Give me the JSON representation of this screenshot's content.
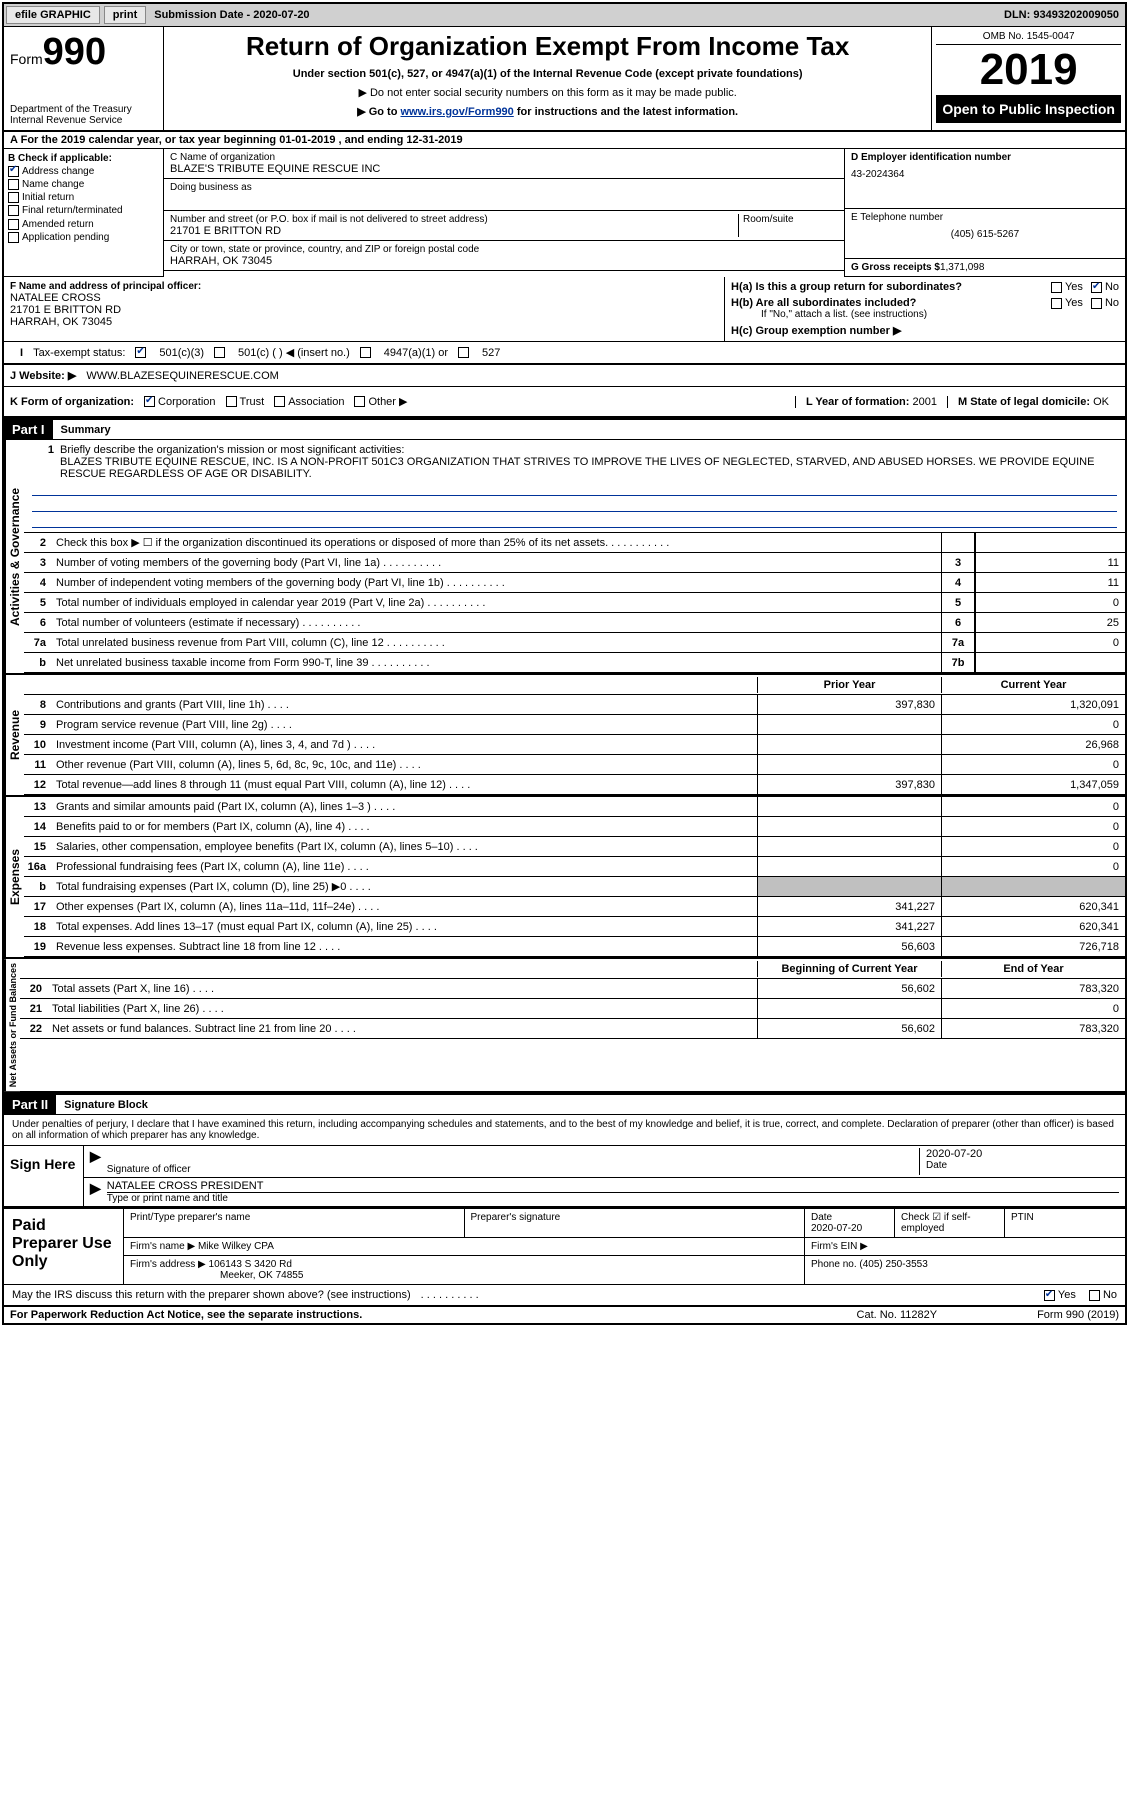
{
  "topbar": {
    "efile": "efile GRAPHIC",
    "print": "print",
    "sub_label": "Submission Date - ",
    "sub_date": "2020-07-20",
    "dln_label": "DLN: ",
    "dln": "93493202009050"
  },
  "header": {
    "form_word": "Form",
    "form_num": "990",
    "dept1": "Department of the Treasury",
    "dept2": "Internal Revenue Service",
    "title": "Return of Organization Exempt From Income Tax",
    "sub1": "Under section 501(c), 527, or 4947(a)(1) of the Internal Revenue Code (except private foundations)",
    "sub2": "▶ Do not enter social security numbers on this form as it may be made public.",
    "sub3_pre": "▶ Go to ",
    "sub3_link": "www.irs.gov/Form990",
    "sub3_post": " for instructions and the latest information.",
    "omb": "OMB No. 1545-0047",
    "year": "2019",
    "open": "Open to Public Inspection"
  },
  "section_a": "For the 2019 calendar year, or tax year beginning 01-01-2019   , and ending 12-31-2019",
  "box_b": {
    "title": "B Check if applicable:",
    "items": [
      "Address change",
      "Name change",
      "Initial return",
      "Final return/terminated",
      "Amended return",
      "Application pending"
    ],
    "checked": [
      true,
      false,
      false,
      false,
      false,
      false
    ]
  },
  "box_c": {
    "name_label": "C Name of organization",
    "name": "BLAZE'S TRIBUTE EQUINE RESCUE INC",
    "dba_label": "Doing business as",
    "dba": "",
    "addr_label": "Number and street (or P.O. box if mail is not delivered to street address)",
    "room_label": "Room/suite",
    "addr": "21701 E BRITTON RD",
    "city_label": "City or town, state or province, country, and ZIP or foreign postal code",
    "city": "HARRAH, OK  73045"
  },
  "box_d": {
    "ein_label": "D Employer identification number",
    "ein": "43-2024364",
    "tel_label": "E Telephone number",
    "tel": "(405) 615-5267",
    "gross_label": "G Gross receipts $",
    "gross": "1,371,098"
  },
  "box_f": {
    "label": "F  Name and address of principal officer:",
    "name": "NATALEE CROSS",
    "addr1": "21701 E BRITTON RD",
    "addr2": "HARRAH, OK  73045"
  },
  "box_h": {
    "ha_label": "H(a)  Is this a group return for subordinates?",
    "hb_label": "H(b)  Are all subordinates included?",
    "hb_note": "If \"No,\" attach a list. (see instructions)",
    "hc_label": "H(c)  Group exemption number ▶",
    "yes": "Yes",
    "no": "No"
  },
  "tax_status": {
    "label": "Tax-exempt status:",
    "opts": [
      "501(c)(3)",
      "501(c) (  ) ◀ (insert no.)",
      "4947(a)(1) or",
      "527"
    ]
  },
  "website": {
    "label": "J  Website: ▶",
    "val": "WWW.BLAZESEQUINERESCUE.COM"
  },
  "k_row": {
    "label": "K Form of organization:",
    "opts": [
      "Corporation",
      "Trust",
      "Association",
      "Other ▶"
    ],
    "l_label": "L Year of formation:",
    "l_val": "2001",
    "m_label": "M State of legal domicile:",
    "m_val": "OK"
  },
  "part1": {
    "num": "Part I",
    "title": "Summary"
  },
  "mission": {
    "num": "1",
    "label": "Briefly describe the organization's mission or most significant activities:",
    "text": "BLAZES TRIBUTE EQUINE RESCUE, INC. IS A NON-PROFIT 501C3 ORGANIZATION THAT STRIVES TO IMPROVE THE LIVES OF NEGLECTED, STARVED, AND ABUSED HORSES. WE PROVIDE EQUINE RESCUE REGARDLESS OF AGE OR DISABILITY."
  },
  "gov_lines": [
    {
      "n": "2",
      "t": "Check this box ▶ ☐  if the organization discontinued its operations or disposed of more than 25% of its net assets.",
      "box": "",
      "v": ""
    },
    {
      "n": "3",
      "t": "Number of voting members of the governing body (Part VI, line 1a)",
      "box": "3",
      "v": "11"
    },
    {
      "n": "4",
      "t": "Number of independent voting members of the governing body (Part VI, line 1b)",
      "box": "4",
      "v": "11"
    },
    {
      "n": "5",
      "t": "Total number of individuals employed in calendar year 2019 (Part V, line 2a)",
      "box": "5",
      "v": "0"
    },
    {
      "n": "6",
      "t": "Total number of volunteers (estimate if necessary)",
      "box": "6",
      "v": "25"
    },
    {
      "n": "7a",
      "t": "Total unrelated business revenue from Part VIII, column (C), line 12",
      "box": "7a",
      "v": "0"
    },
    {
      "n": "b",
      "t": "Net unrelated business taxable income from Form 990-T, line 39",
      "box": "7b",
      "v": ""
    }
  ],
  "col_headers": {
    "prior": "Prior Year",
    "current": "Current Year"
  },
  "revenue": [
    {
      "n": "8",
      "t": "Contributions and grants (Part VIII, line 1h)",
      "p": "397,830",
      "c": "1,320,091"
    },
    {
      "n": "9",
      "t": "Program service revenue (Part VIII, line 2g)",
      "p": "",
      "c": "0"
    },
    {
      "n": "10",
      "t": "Investment income (Part VIII, column (A), lines 3, 4, and 7d )",
      "p": "",
      "c": "26,968"
    },
    {
      "n": "11",
      "t": "Other revenue (Part VIII, column (A), lines 5, 6d, 8c, 9c, 10c, and 11e)",
      "p": "",
      "c": "0"
    },
    {
      "n": "12",
      "t": "Total revenue—add lines 8 through 11 (must equal Part VIII, column (A), line 12)",
      "p": "397,830",
      "c": "1,347,059"
    }
  ],
  "expenses": [
    {
      "n": "13",
      "t": "Grants and similar amounts paid (Part IX, column (A), lines 1–3 )",
      "p": "",
      "c": "0"
    },
    {
      "n": "14",
      "t": "Benefits paid to or for members (Part IX, column (A), line 4)",
      "p": "",
      "c": "0"
    },
    {
      "n": "15",
      "t": "Salaries, other compensation, employee benefits (Part IX, column (A), lines 5–10)",
      "p": "",
      "c": "0"
    },
    {
      "n": "16a",
      "t": "Professional fundraising fees (Part IX, column (A), line 11e)",
      "p": "",
      "c": "0"
    },
    {
      "n": "b",
      "t": "Total fundraising expenses (Part IX, column (D), line 25) ▶0",
      "p": "grey",
      "c": "grey"
    },
    {
      "n": "17",
      "t": "Other expenses (Part IX, column (A), lines 11a–11d, 11f–24e)",
      "p": "341,227",
      "c": "620,341"
    },
    {
      "n": "18",
      "t": "Total expenses. Add lines 13–17 (must equal Part IX, column (A), line 25)",
      "p": "341,227",
      "c": "620,341"
    },
    {
      "n": "19",
      "t": "Revenue less expenses. Subtract line 18 from line 12",
      "p": "56,603",
      "c": "726,718"
    }
  ],
  "net_headers": {
    "beg": "Beginning of Current Year",
    "end": "End of Year"
  },
  "net": [
    {
      "n": "20",
      "t": "Total assets (Part X, line 16)",
      "p": "56,602",
      "c": "783,320"
    },
    {
      "n": "21",
      "t": "Total liabilities (Part X, line 26)",
      "p": "",
      "c": "0"
    },
    {
      "n": "22",
      "t": "Net assets or fund balances. Subtract line 21 from line 20",
      "p": "56,602",
      "c": "783,320"
    }
  ],
  "vtabs": {
    "gov": "Activities & Governance",
    "rev": "Revenue",
    "exp": "Expenses",
    "net": "Net Assets or Fund Balances"
  },
  "part2": {
    "num": "Part II",
    "title": "Signature Block"
  },
  "sig_decl": "Under penalties of perjury, I declare that I have examined this return, including accompanying schedules and statements, and to the best of my knowledge and belief, it is true, correct, and complete. Declaration of preparer (other than officer) is based on all information of which preparer has any knowledge.",
  "sign_here": "Sign Here",
  "sig": {
    "officer_label": "Signature of officer",
    "date_label": "Date",
    "date": "2020-07-20",
    "name": "NATALEE CROSS PRESIDENT",
    "name_label": "Type or print name and title"
  },
  "paid": {
    "title": "Paid Preparer Use Only",
    "h1": "Print/Type preparer's name",
    "h2": "Preparer's signature",
    "h3": "Date",
    "h3v": "2020-07-20",
    "h4": "Check ☑ if self-employed",
    "h5": "PTIN",
    "firm_label": "Firm's name    ▶",
    "firm": "Mike Wilkey CPA",
    "ein_label": "Firm's EIN ▶",
    "addr_label": "Firm's address ▶",
    "addr1": "106143 S 3420 Rd",
    "addr2": "Meeker, OK  74855",
    "phone_label": "Phone no.",
    "phone": "(405) 250-3553"
  },
  "discuss": {
    "q": "May the IRS discuss this return with the preparer shown above? (see instructions)",
    "yes": "Yes",
    "no": "No"
  },
  "footer": {
    "l": "For Paperwork Reduction Act Notice, see the separate instructions.",
    "m": "Cat. No. 11282Y",
    "r": "Form 990 (2019)"
  }
}
